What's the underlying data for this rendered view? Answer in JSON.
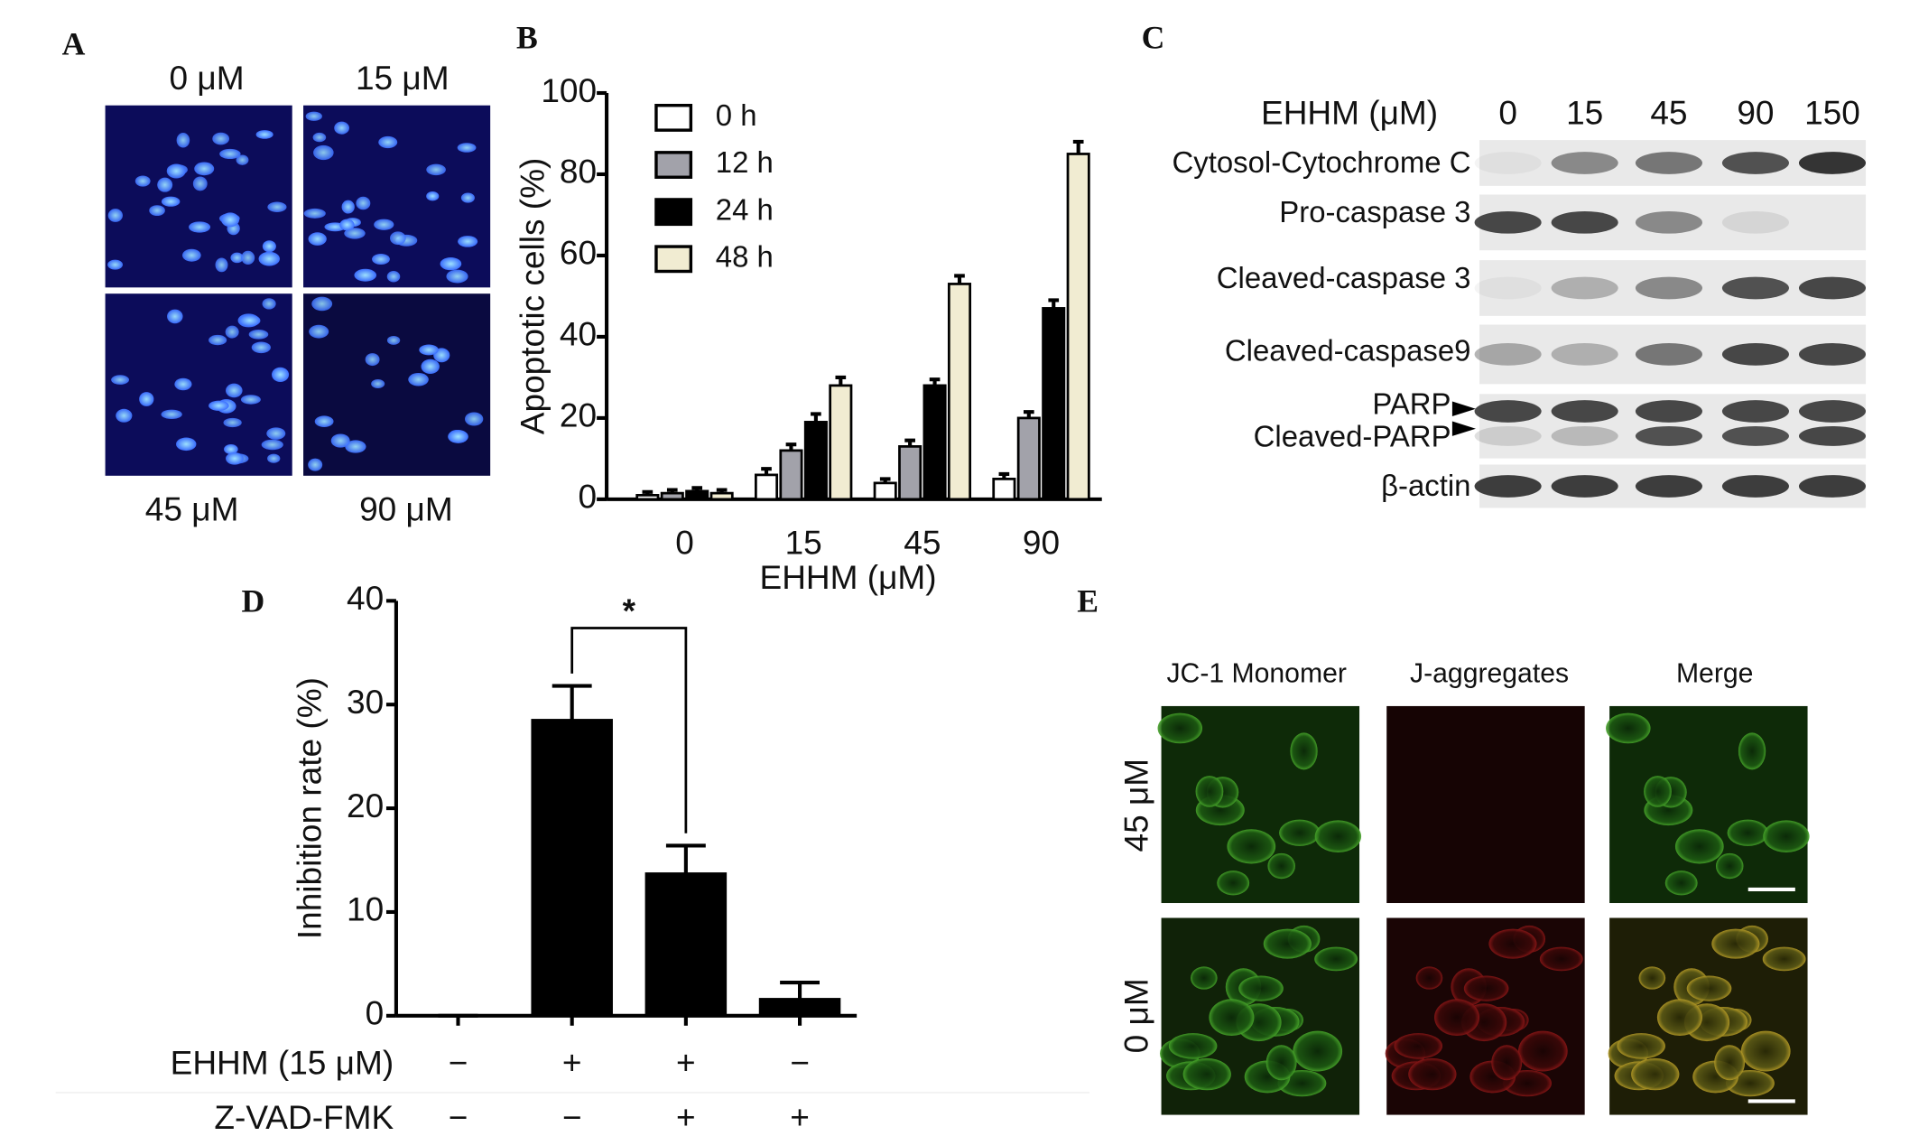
{
  "panel_labels": [
    "A",
    "B",
    "C",
    "D",
    "E"
  ],
  "panel_a": {
    "labels": [
      "0 μM",
      "15 μM",
      "45 μM",
      "90 μM"
    ]
  },
  "chart_data": [
    {
      "type": "bar",
      "ylabel": "Apoptotic cells (%)",
      "xlabel": "EHHM (μM)",
      "categories": [
        "0",
        "15",
        "45",
        "90"
      ],
      "series": [
        {
          "name": "0 h",
          "color": "#ffffff",
          "values": [
            1,
            6,
            4,
            5
          ],
          "errors": [
            0.8,
            1.5,
            1,
            1.2
          ]
        },
        {
          "name": "12 h",
          "color": "#a2a2aa",
          "values": [
            1.5,
            12,
            13,
            20
          ],
          "errors": [
            0.8,
            1.5,
            1.5,
            1.5
          ]
        },
        {
          "name": "24 h",
          "color": "#000000",
          "values": [
            2,
            19,
            28,
            47
          ],
          "errors": [
            0.8,
            2,
            1.5,
            2
          ]
        },
        {
          "name": "48 h",
          "color": "#f1ecd2",
          "values": [
            1.5,
            28,
            53,
            85
          ],
          "errors": [
            0.8,
            2,
            2,
            3
          ]
        }
      ],
      "ylim": [
        0,
        100
      ],
      "yticks": [
        0,
        20,
        40,
        60,
        80,
        100
      ]
    },
    {
      "type": "bar",
      "ylabel": "Inhibition rate (%)",
      "color": "#000000",
      "values": [
        0,
        28.5,
        13.7,
        1.6
      ],
      "errors": [
        0,
        3.3,
        2.7,
        1.6
      ],
      "ylim": [
        0,
        40
      ],
      "yticks": [
        0,
        10,
        20,
        30,
        40
      ],
      "annotation": "*",
      "treatments": [
        {
          "name": "EHHM (15 μM)",
          "signs": [
            "−",
            "+",
            "+",
            "−"
          ]
        },
        {
          "name": "Z-VAD-FMK",
          "signs": [
            "−",
            "−",
            "+",
            "+"
          ]
        }
      ]
    }
  ],
  "panel_c": {
    "header": "EHHM (μM)",
    "doses": [
      "0",
      "15",
      "45",
      "90",
      "150"
    ],
    "rows": [
      "Cytosol-Cytochrome C",
      "Pro-caspase 3",
      "Cleaved-caspase 3",
      "Cleaved-caspase9",
      "PARP",
      "Cleaved-PARP",
      "β-actin"
    ]
  },
  "panel_e": {
    "columns": [
      "JC-1 Monomer",
      "J-aggregates",
      "Merge"
    ],
    "rows": [
      "45 μM",
      "0 μM"
    ]
  }
}
